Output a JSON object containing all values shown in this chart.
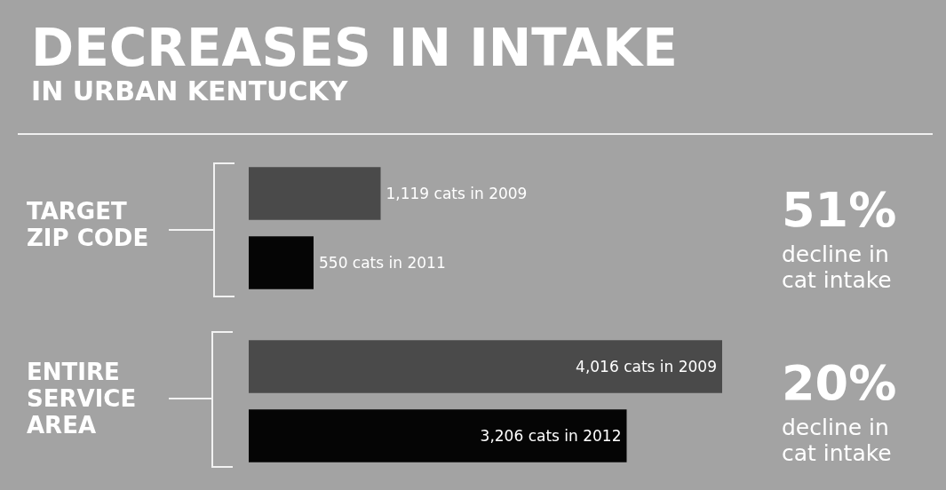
{
  "chart_data": [
    {
      "type": "bar",
      "orientation": "horizontal",
      "title": "DECREASES IN INTAKE",
      "subtitle": "IN URBAN KENTUCKY",
      "categories": [
        null,
        null
      ],
      "values": [
        1119,
        550
      ],
      "colors": [
        "#4a4a4a",
        "#050505"
      ],
      "value_labels": [
        "1,119 cats in 2009",
        "550 cats in 2011"
      ],
      "annotations": [
        "TARGET ZIP CODE",
        "51%",
        "decline in cat intake"
      ]
    },
    {
      "type": "bar",
      "orientation": "horizontal",
      "categories": [
        null,
        null
      ],
      "values": [
        4016,
        3206
      ],
      "colors": [
        "#4a4a4a",
        "#050505"
      ],
      "value_labels": [
        "4,016 cats in 2009",
        "3,206 cats in 2012"
      ],
      "annotations": [
        "ENTIRE SERVICE AREA",
        "20%",
        "decline in cat intake"
      ]
    }
  ]
}
